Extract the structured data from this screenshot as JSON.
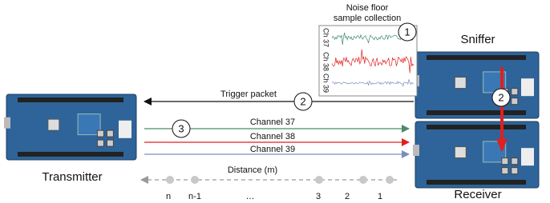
{
  "noise_panel": {
    "title": [
      "Noise floor",
      "sample collection"
    ],
    "channels": [
      "Ch 37",
      "Ch 38",
      "Ch 39"
    ]
  },
  "devices": {
    "sniffer": "Sniffer",
    "receiver": "Receiver",
    "transmitter": "Transmitter"
  },
  "links": {
    "trigger": "Trigger packet",
    "channels": [
      "Channel 37",
      "Channel 38",
      "Channel 39"
    ]
  },
  "steps": {
    "noise": "1",
    "trigger": "2",
    "transmit": "3",
    "receive": "2"
  },
  "distance": {
    "label": "Distance (m)",
    "points": [
      "n",
      "n-1",
      "…",
      "3",
      "2",
      "1"
    ]
  }
}
